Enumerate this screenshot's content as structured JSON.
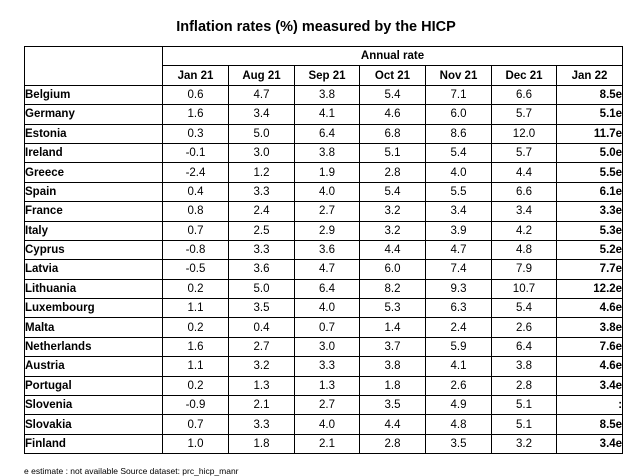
{
  "title": "Inflation rates (%) measured by the HICP",
  "super_header": "Annual rate",
  "columns": [
    "Jan 21",
    "Aug 21",
    "Sep 21",
    "Oct 21",
    "Nov 21",
    "Dec 21",
    "Jan 22"
  ],
  "rows": [
    {
      "country": "Belgium",
      "values": [
        "0.6",
        "4.7",
        "3.8",
        "5.4",
        "7.1",
        "6.6",
        "8.5e"
      ]
    },
    {
      "country": "Germany",
      "values": [
        "1.6",
        "3.4",
        "4.1",
        "4.6",
        "6.0",
        "5.7",
        "5.1e"
      ]
    },
    {
      "country": "Estonia",
      "values": [
        "0.3",
        "5.0",
        "6.4",
        "6.8",
        "8.6",
        "12.0",
        "11.7e"
      ]
    },
    {
      "country": "Ireland",
      "values": [
        "-0.1",
        "3.0",
        "3.8",
        "5.1",
        "5.4",
        "5.7",
        "5.0e"
      ]
    },
    {
      "country": "Greece",
      "values": [
        "-2.4",
        "1.2",
        "1.9",
        "2.8",
        "4.0",
        "4.4",
        "5.5e"
      ]
    },
    {
      "country": "Spain",
      "values": [
        "0.4",
        "3.3",
        "4.0",
        "5.4",
        "5.5",
        "6.6",
        "6.1e"
      ]
    },
    {
      "country": "France",
      "values": [
        "0.8",
        "2.4",
        "2.7",
        "3.2",
        "3.4",
        "3.4",
        "3.3e"
      ]
    },
    {
      "country": "Italy",
      "values": [
        "0.7",
        "2.5",
        "2.9",
        "3.2",
        "3.9",
        "4.2",
        "5.3e"
      ]
    },
    {
      "country": "Cyprus",
      "values": [
        "-0.8",
        "3.3",
        "3.6",
        "4.4",
        "4.7",
        "4.8",
        "5.2e"
      ]
    },
    {
      "country": "Latvia",
      "values": [
        "-0.5",
        "3.6",
        "4.7",
        "6.0",
        "7.4",
        "7.9",
        "7.7e"
      ]
    },
    {
      "country": "Lithuania",
      "values": [
        "0.2",
        "5.0",
        "6.4",
        "8.2",
        "9.3",
        "10.7",
        "12.2e"
      ]
    },
    {
      "country": "Luxembourg",
      "values": [
        "1.1",
        "3.5",
        "4.0",
        "5.3",
        "6.3",
        "5.4",
        "4.6e"
      ]
    },
    {
      "country": "Malta",
      "values": [
        "0.2",
        "0.4",
        "0.7",
        "1.4",
        "2.4",
        "2.6",
        "3.8e"
      ]
    },
    {
      "country": "Netherlands",
      "values": [
        "1.6",
        "2.7",
        "3.0",
        "3.7",
        "5.9",
        "6.4",
        "7.6e"
      ]
    },
    {
      "country": "Austria",
      "values": [
        "1.1",
        "3.2",
        "3.3",
        "3.8",
        "4.1",
        "3.8",
        "4.6e"
      ]
    },
    {
      "country": "Portugal",
      "values": [
        "0.2",
        "1.3",
        "1.3",
        "1.8",
        "2.6",
        "2.8",
        "3.4e"
      ]
    },
    {
      "country": "Slovenia",
      "values": [
        "-0.9",
        "2.1",
        "2.7",
        "3.5",
        "4.9",
        "5.1",
        ":"
      ]
    },
    {
      "country": "Slovakia",
      "values": [
        "0.7",
        "3.3",
        "4.0",
        "4.4",
        "4.8",
        "5.1",
        "8.5e"
      ]
    },
    {
      "country": "Finland",
      "values": [
        "1.0",
        "1.8",
        "2.1",
        "2.8",
        "3.5",
        "3.2",
        "3.4e"
      ]
    }
  ],
  "footnote": "e estimate   : not available   Source dataset: prc_hicp_manr"
}
